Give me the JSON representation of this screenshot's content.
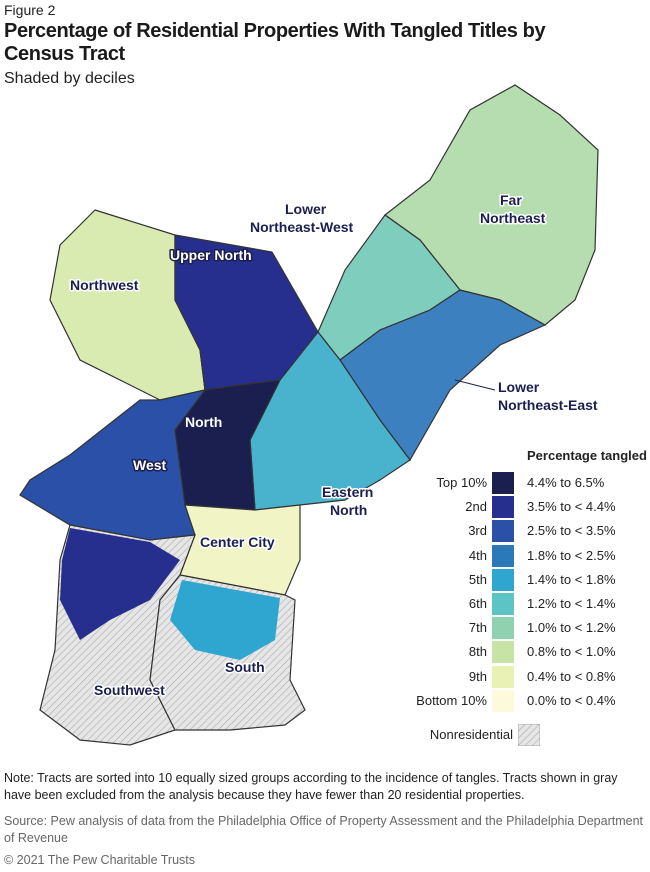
{
  "figure_label": "Figure 2",
  "title": "Percentage of Residential Properties With Tangled Titles by Census Tract",
  "subtitle": "Shaded by deciles",
  "regions": {
    "far_northeast": [
      "Far",
      "Northeast"
    ],
    "lower_northeast_west": [
      "Lower",
      "Northeast-West"
    ],
    "upper_north": "Upper North",
    "northwest": "Northwest",
    "north": "North",
    "west": "West",
    "eastern_north": [
      "Eastern",
      "North"
    ],
    "center_city": "Center City",
    "south": "South",
    "southwest": "Southwest",
    "lower_northeast_east": [
      "Lower",
      "Northeast-East"
    ]
  },
  "legend": {
    "title": "Percentage tangled",
    "items": [
      {
        "rank": "Top 10%",
        "range": "4.4% to 6.5%",
        "color": "#1b1f4f"
      },
      {
        "rank": "2nd",
        "range": "3.5% to < 4.4%",
        "color": "#272f8e"
      },
      {
        "rank": "3rd",
        "range": "2.5% to < 3.5%",
        "color": "#2a50a8"
      },
      {
        "rank": "4th",
        "range": "1.8% to < 2.5%",
        "color": "#2b79b9"
      },
      {
        "rank": "5th",
        "range": "1.4% to < 1.8%",
        "color": "#2ea6cf"
      },
      {
        "rank": "6th",
        "range": "1.2% to < 1.4%",
        "color": "#5cc4c4"
      },
      {
        "rank": "7th",
        "range": "1.0% to < 1.2%",
        "color": "#90d1b0"
      },
      {
        "rank": "8th",
        "range": "0.8% to < 1.0%",
        "color": "#c7e3a6"
      },
      {
        "rank": "9th",
        "range": "0.4% to < 0.8%",
        "color": "#eaf1b4"
      },
      {
        "rank": "Bottom 10%",
        "range": "0.0% to < 0.4%",
        "color": "#fcfadb"
      }
    ],
    "nonresidential": "Nonresidential"
  },
  "note": "Note: Tracts are sorted into 10 equally sized groups according to the incidence of tangles. Tracts shown in gray have been excluded from the analysis because they have fewer than 20 residential properties.",
  "source": "Source: Pew analysis of data from the Philadelphia Office of Property Assessment and the Philadelphia Department of Revenue",
  "copyright": "© 2021 The Pew Charitable Trusts"
}
